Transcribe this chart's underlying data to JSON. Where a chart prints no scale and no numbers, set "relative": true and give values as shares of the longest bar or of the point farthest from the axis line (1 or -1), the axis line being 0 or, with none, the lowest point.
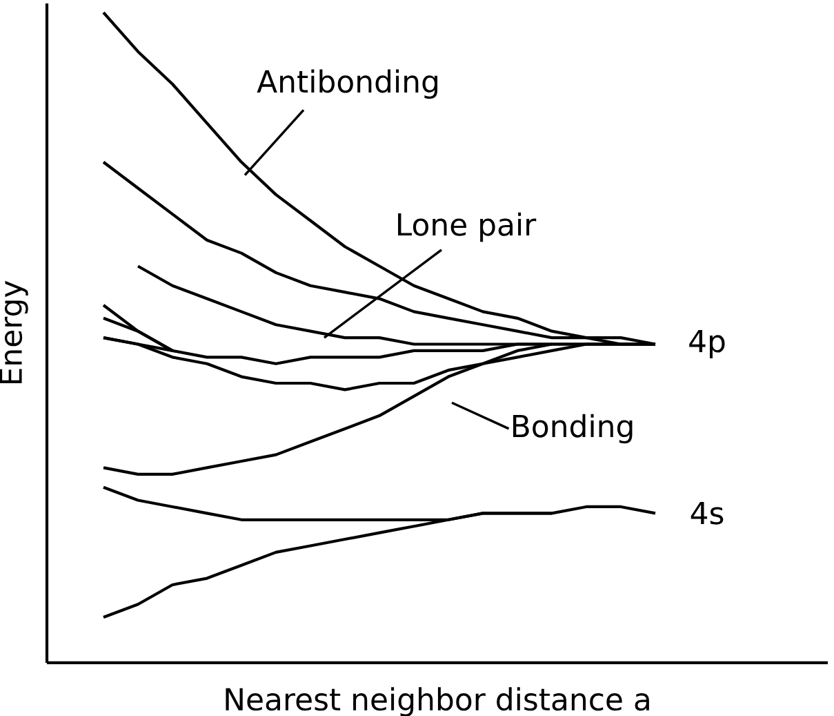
{
  "chart_data": {
    "type": "line",
    "relative": true,
    "xlabel": "Nearest neighbor distance  a",
    "ylabel": "Energy",
    "categories": [
      null,
      null,
      null,
      null,
      null,
      null,
      null,
      null,
      null,
      null,
      null,
      null,
      null,
      null,
      null,
      null,
      null
    ],
    "annotations": [
      "Antibonding",
      "Lone pair",
      "Bonding",
      "4p",
      "4s"
    ],
    "series": [
      {
        "color": "#000000",
        "values": [
          1.0,
          0.94,
          0.89,
          0.83,
          0.77,
          0.72,
          0.68,
          0.64,
          0.61,
          0.58,
          0.56,
          0.54,
          0.53,
          0.51,
          0.5,
          0.5,
          0.49
        ]
      },
      {
        "color": "#000000",
        "values": [
          0.77,
          0.73,
          0.69,
          0.65,
          0.63,
          0.6,
          0.58,
          0.57,
          0.56,
          0.54,
          0.53,
          0.52,
          0.51,
          0.5,
          0.5,
          0.49,
          0.49
        ]
      },
      {
        "color": "#000000",
        "values": [
          null,
          0.61,
          0.58,
          0.56,
          0.54,
          0.52,
          0.51,
          0.5,
          0.5,
          0.49,
          0.49,
          0.49,
          0.49,
          0.49,
          0.49,
          0.49,
          0.49
        ]
      },
      {
        "color": "#000000",
        "values": [
          0.5,
          0.49,
          0.48,
          0.47,
          0.47,
          0.46,
          0.47,
          0.47,
          0.47,
          0.48,
          0.48,
          0.48,
          0.49,
          0.49,
          0.49,
          0.49,
          0.49
        ]
      },
      {
        "color": "#000000",
        "values": [
          0.5,
          0.49,
          0.47,
          0.46,
          0.44,
          0.43,
          0.43,
          0.42,
          0.43,
          0.43,
          0.45,
          0.46,
          0.48,
          0.49,
          null,
          null,
          null
        ]
      },
      {
        "color": "#000000",
        "values": [
          0.3,
          0.29,
          0.29,
          0.3,
          0.31,
          0.32,
          0.34,
          0.36,
          0.38,
          0.41,
          0.44,
          0.46,
          0.47,
          0.48,
          0.49,
          0.49,
          0.49
        ]
      },
      {
        "color": "#000000",
        "values": [
          0.55,
          0.51,
          0.48,
          null,
          null,
          null,
          null,
          null,
          null,
          null,
          null,
          null,
          null,
          null,
          null,
          null,
          null
        ]
      },
      {
        "color": "#000000",
        "values": [
          0.53,
          0.51,
          0.48,
          null,
          null,
          null,
          null,
          null,
          null,
          null,
          null,
          null,
          null,
          null,
          null,
          null,
          null
        ]
      },
      {
        "color": "#000000",
        "values": [
          0.27,
          0.25,
          0.24,
          0.23,
          0.22,
          0.22,
          0.22,
          0.22,
          0.22,
          0.22,
          0.22,
          0.23,
          0.23,
          0.23,
          0.24,
          0.24,
          0.23
        ]
      },
      {
        "color": "#000000",
        "values": [
          0.07,
          0.09,
          0.12,
          0.13,
          0.15,
          0.17,
          0.18,
          0.19,
          0.2,
          0.21,
          0.22,
          0.23,
          0.23,
          0.23,
          null,
          null,
          null
        ]
      }
    ]
  }
}
